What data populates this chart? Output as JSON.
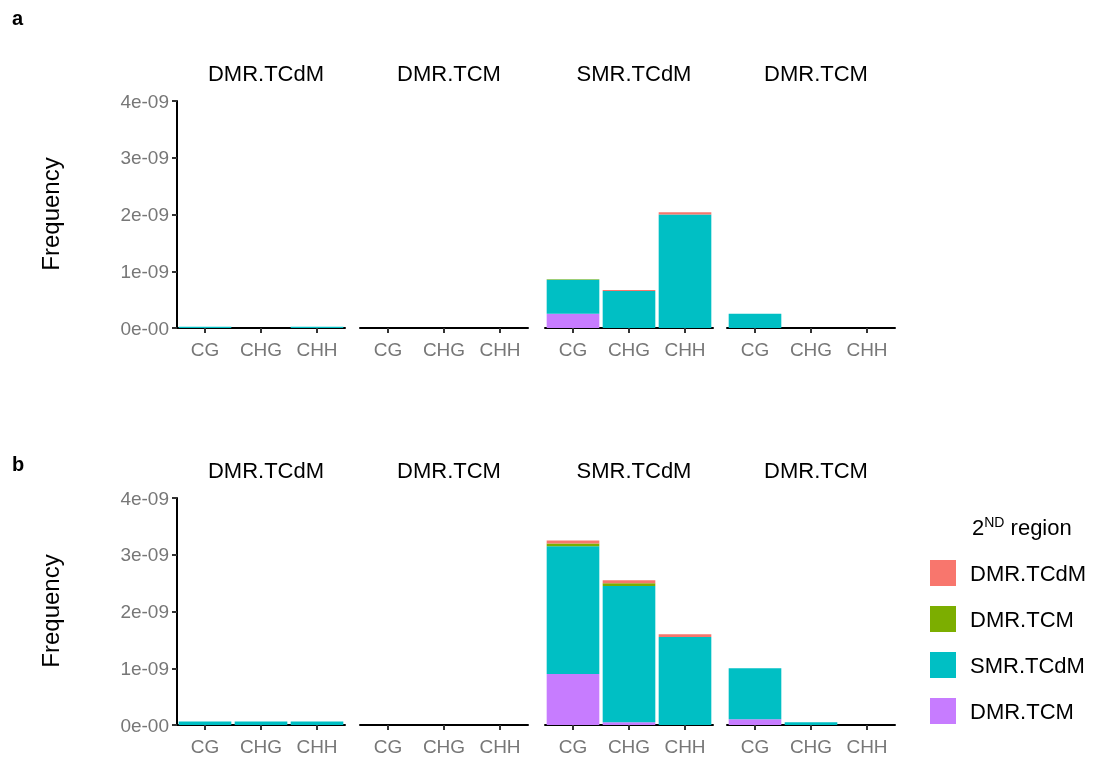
{
  "chart_data": [
    {
      "type": "bar",
      "stacked": true,
      "title": "DMR.TCdM",
      "ylabel": "Frequency",
      "annotations": [
        "a"
      ],
      "categories": [
        "CG",
        "CHG",
        "CHH"
      ],
      "ylim": [
        0,
        4e-09
      ],
      "yticks": [
        {
          "value": 0,
          "label": "0e-00"
        },
        {
          "value": 1e-09,
          "label": "1e-09"
        },
        {
          "value": 2e-09,
          "label": "2e-09"
        },
        {
          "value": 3e-09,
          "label": "3e-09"
        },
        {
          "value": 4e-09,
          "label": "4e-09"
        }
      ],
      "legend": false,
      "series": [
        {
          "color": "#c77cff",
          "values": [
            0,
            0,
            0
          ]
        },
        {
          "color": "#00bfc4",
          "values": [
            2e-11,
            0,
            2e-11
          ]
        },
        {
          "color": "#7cae00",
          "values": [
            0,
            0,
            0
          ]
        },
        {
          "color": "#f8766d",
          "values": [
            0,
            0,
            0
          ]
        }
      ]
    },
    {
      "type": "bar",
      "stacked": true,
      "title": "DMR.TCM",
      "tick_labels": "x",
      "categories": [
        "CG",
        "CHG",
        "CHH"
      ],
      "ylim": [
        0,
        4e-09
      ],
      "legend": false,
      "series": [
        {
          "color": "#c77cff",
          "values": [
            0,
            0,
            0
          ]
        },
        {
          "color": "#00bfc4",
          "values": [
            0,
            0,
            0
          ]
        },
        {
          "color": "#7cae00",
          "values": [
            0,
            0,
            0
          ]
        },
        {
          "color": "#f8766d",
          "values": [
            0,
            0,
            0
          ]
        }
      ]
    },
    {
      "type": "bar",
      "stacked": true,
      "title": "SMR.TCdM",
      "tick_labels": "x",
      "categories": [
        "CG",
        "CHG",
        "CHH"
      ],
      "ylim": [
        0,
        4e-09
      ],
      "legend": false,
      "series": [
        {
          "color": "#c77cff",
          "values": [
            2.5e-10,
            0,
            0
          ]
        },
        {
          "color": "#00bfc4",
          "values": [
            6e-10,
            6.5e-10,
            2e-09
          ]
        },
        {
          "color": "#7cae00",
          "values": [
            1e-11,
            0,
            0
          ]
        },
        {
          "color": "#f8766d",
          "values": [
            0,
            2e-11,
            4e-11
          ]
        }
      ]
    },
    {
      "type": "bar",
      "stacked": true,
      "title": "DMR.TCM",
      "tick_labels": "x",
      "categories": [
        "CG",
        "CHG",
        "CHH"
      ],
      "ylim": [
        0,
        4e-09
      ],
      "legend": false,
      "series": [
        {
          "color": "#c77cff",
          "values": [
            0,
            0,
            0
          ]
        },
        {
          "color": "#00bfc4",
          "values": [
            2.5e-10,
            0,
            0
          ]
        },
        {
          "color": "#7cae00",
          "values": [
            0,
            0,
            0
          ]
        },
        {
          "color": "#f8766d",
          "values": [
            0,
            0,
            0
          ]
        }
      ]
    },
    {
      "type": "bar",
      "stacked": true,
      "title": "DMR.TCdM",
      "ylabel": "Frequency",
      "annotations": [
        "b"
      ],
      "categories": [
        "CG",
        "CHG",
        "CHH"
      ],
      "ylim": [
        0,
        4e-09
      ],
      "yticks": [
        {
          "value": 0,
          "label": "0e-00"
        },
        {
          "value": 1e-09,
          "label": "1e-09"
        },
        {
          "value": 2e-09,
          "label": "2e-09"
        },
        {
          "value": 3e-09,
          "label": "3e-09"
        },
        {
          "value": 4e-09,
          "label": "4e-09"
        }
      ],
      "legend": false,
      "series": [
        {
          "color": "#c77cff",
          "values": [
            0,
            0,
            0
          ]
        },
        {
          "color": "#00bfc4",
          "values": [
            6e-11,
            6e-11,
            6e-11
          ]
        },
        {
          "color": "#7cae00",
          "values": [
            0,
            0,
            0
          ]
        },
        {
          "color": "#f8766d",
          "values": [
            0,
            0,
            0
          ]
        }
      ]
    },
    {
      "type": "bar",
      "stacked": true,
      "title": "DMR.TCM",
      "tick_labels": "x",
      "categories": [
        "CG",
        "CHG",
        "CHH"
      ],
      "ylim": [
        0,
        4e-09
      ],
      "legend": false,
      "series": [
        {
          "color": "#c77cff",
          "values": [
            0,
            0,
            0
          ]
        },
        {
          "color": "#00bfc4",
          "values": [
            0,
            0,
            0
          ]
        },
        {
          "color": "#7cae00",
          "values": [
            0,
            0,
            0
          ]
        },
        {
          "color": "#f8766d",
          "values": [
            0,
            0,
            0
          ]
        }
      ]
    },
    {
      "type": "bar",
      "stacked": true,
      "title": "SMR.TCdM",
      "tick_labels": "x",
      "categories": [
        "CG",
        "CHG",
        "CHH"
      ],
      "ylim": [
        0,
        4e-09
      ],
      "legend": false,
      "series": [
        {
          "color": "#c77cff",
          "values": [
            9e-10,
            5e-11,
            0
          ]
        },
        {
          "color": "#00bfc4",
          "values": [
            2.25e-09,
            2.4e-09,
            1.55e-09
          ]
        },
        {
          "color": "#7cae00",
          "values": [
            5e-11,
            5e-11,
            0
          ]
        },
        {
          "color": "#f8766d",
          "values": [
            5e-11,
            5e-11,
            5e-11
          ]
        }
      ]
    },
    {
      "type": "bar",
      "stacked": true,
      "title": "DMR.TCM",
      "tick_labels": "x",
      "categories": [
        "CG",
        "CHG",
        "CHH"
      ],
      "ylim": [
        0,
        4e-09
      ],
      "legend": "right",
      "legend_title": "2$^{ND}$ region",
      "series": [
        {
          "name": "DMR.TCM",
          "color": "#c77cff",
          "values": [
            1e-10,
            0,
            0
          ]
        },
        {
          "name": "SMR.TCdM",
          "color": "#00bfc4",
          "values": [
            9e-10,
            5e-11,
            0
          ]
        },
        {
          "name": "DMR.TCM",
          "color": "#7cae00",
          "values": [
            0,
            0,
            0
          ]
        },
        {
          "name": "DMR.TCdM",
          "color": "#f8766d",
          "values": [
            0,
            0,
            0
          ]
        }
      ]
    }
  ]
}
